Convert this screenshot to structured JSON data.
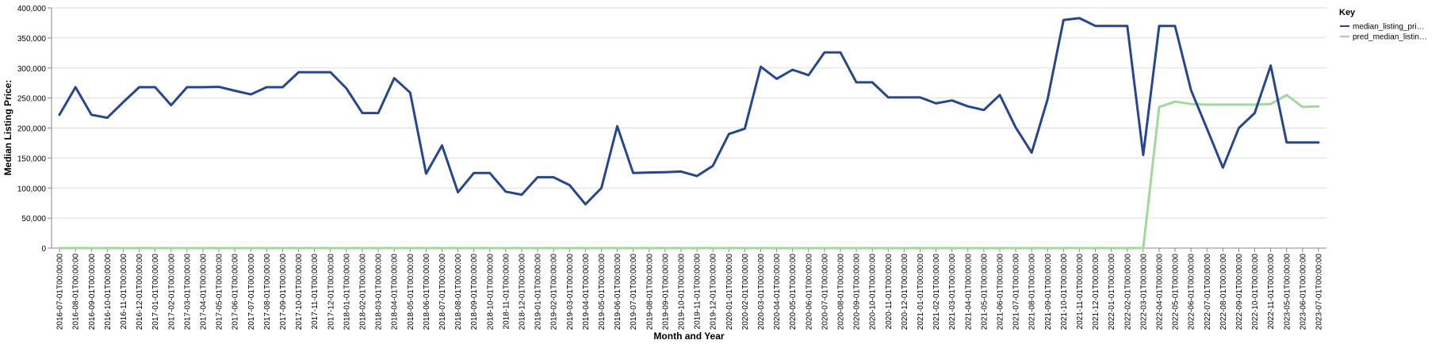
{
  "chart_data": {
    "type": "line",
    "xlabel": "Month and Year",
    "ylabel": "Median Listing Price:",
    "ylim": [
      0,
      400000
    ],
    "yticks": [
      0,
      50000,
      100000,
      150000,
      200000,
      250000,
      300000,
      350000,
      400000
    ],
    "ytick_labels": [
      "0",
      "50,000",
      "100,000",
      "150,000",
      "200,000",
      "250,000",
      "300,000",
      "350,000",
      "400,000"
    ],
    "grid": "horizontal",
    "legend_title": "Key",
    "legend_position": "right",
    "categories": [
      "2016-07-01T00:00:00",
      "2016-08-01T00:00:00",
      "2016-09-01T00:00:00",
      "2016-10-01T00:00:00",
      "2016-11-01T00:00:00",
      "2016-12-01T00:00:00",
      "2017-01-01T00:00:00",
      "2017-02-01T00:00:00",
      "2017-03-01T00:00:00",
      "2017-04-01T00:00:00",
      "2017-05-01T00:00:00",
      "2017-06-01T00:00:00",
      "2017-07-01T00:00:00",
      "2017-08-01T00:00:00",
      "2017-09-01T00:00:00",
      "2017-10-01T00:00:00",
      "2017-11-01T00:00:00",
      "2017-12-01T00:00:00",
      "2018-01-01T00:00:00",
      "2018-02-01T00:00:00",
      "2018-03-01T00:00:00",
      "2018-04-01T00:00:00",
      "2018-05-01T00:00:00",
      "2018-06-01T00:00:00",
      "2018-07-01T00:00:00",
      "2018-08-01T00:00:00",
      "2018-09-01T00:00:00",
      "2018-10-01T00:00:00",
      "2018-11-01T00:00:00",
      "2018-12-01T00:00:00",
      "2019-01-01T00:00:00",
      "2019-02-01T00:00:00",
      "2019-03-01T00:00:00",
      "2019-04-01T00:00:00",
      "2019-05-01T00:00:00",
      "2019-06-01T00:00:00",
      "2019-07-01T00:00:00",
      "2019-08-01T00:00:00",
      "2019-09-01T00:00:00",
      "2019-10-01T00:00:00",
      "2019-11-01T00:00:00",
      "2019-12-01T00:00:00",
      "2020-01-01T00:00:00",
      "2020-02-01T00:00:00",
      "2020-03-01T00:00:00",
      "2020-04-01T00:00:00",
      "2020-05-01T00:00:00",
      "2020-06-01T00:00:00",
      "2020-07-01T00:00:00",
      "2020-08-01T00:00:00",
      "2020-09-01T00:00:00",
      "2020-10-01T00:00:00",
      "2020-11-01T00:00:00",
      "2020-12-01T00:00:00",
      "2021-01-01T00:00:00",
      "2021-02-01T00:00:00",
      "2021-03-01T00:00:00",
      "2021-04-01T00:00:00",
      "2021-05-01T00:00:00",
      "2021-06-01T00:00:00",
      "2021-07-01T00:00:00",
      "2021-08-01T00:00:00",
      "2021-09-01T00:00:00",
      "2021-10-01T00:00:00",
      "2021-11-01T00:00:00",
      "2021-12-01T00:00:00",
      "2022-01-01T00:00:00",
      "2022-02-01T00:00:00",
      "2022-03-01T00:00:00",
      "2022-04-01T00:00:00",
      "2022-05-01T00:00:00",
      "2022-06-01T00:00:00",
      "2022-07-01T00:00:00",
      "2022-08-01T00:00:00",
      "2022-09-01T00:00:00",
      "2022-10-01T00:00:00",
      "2022-11-01T00:00:00",
      "2023-05-01T00:00:00",
      "2023-06-01T00:00:00",
      "2023-07-01T00:00:00"
    ],
    "series": [
      {
        "name": "median_listing_pri…",
        "color": "#26478f",
        "values": [
          222000,
          268000,
          222000,
          217000,
          243000,
          268000,
          268000,
          238000,
          268000,
          268000,
          268500,
          262000,
          256000,
          268000,
          268000,
          293000,
          293000,
          293000,
          266000,
          225000,
          225000,
          283000,
          259000,
          124000,
          171000,
          93000,
          125000,
          125000,
          94000,
          89000,
          118000,
          118000,
          105000,
          73000,
          100000,
          203000,
          125000,
          126000,
          126500,
          127500,
          120000,
          137000,
          190000,
          199000,
          302000,
          282000,
          297000,
          288000,
          326000,
          326000,
          276000,
          276000,
          251000,
          251000,
          251000,
          241000,
          246000,
          236000,
          230000,
          255000,
          201000,
          159000,
          248000,
          380000,
          383000,
          370000,
          370000,
          370000,
          155000,
          370000,
          370000,
          263000,
          199000,
          134000,
          200000,
          225000,
          304000,
          176000,
          176000,
          176000
        ]
      },
      {
        "name": "pred_median_listin…",
        "color": "#a1d99b",
        "values": [
          0,
          0,
          0,
          0,
          0,
          0,
          0,
          0,
          0,
          0,
          0,
          0,
          0,
          0,
          0,
          0,
          0,
          0,
          0,
          0,
          0,
          0,
          0,
          0,
          0,
          0,
          0,
          0,
          0,
          0,
          0,
          0,
          0,
          0,
          0,
          0,
          0,
          0,
          0,
          0,
          0,
          0,
          0,
          0,
          0,
          0,
          0,
          0,
          0,
          0,
          0,
          0,
          0,
          0,
          0,
          0,
          0,
          0,
          0,
          0,
          0,
          0,
          0,
          0,
          0,
          0,
          0,
          0,
          0,
          235000,
          244000,
          240000,
          239000,
          239000,
          239000,
          239000,
          240000,
          255000,
          235000,
          236000
        ]
      }
    ]
  }
}
